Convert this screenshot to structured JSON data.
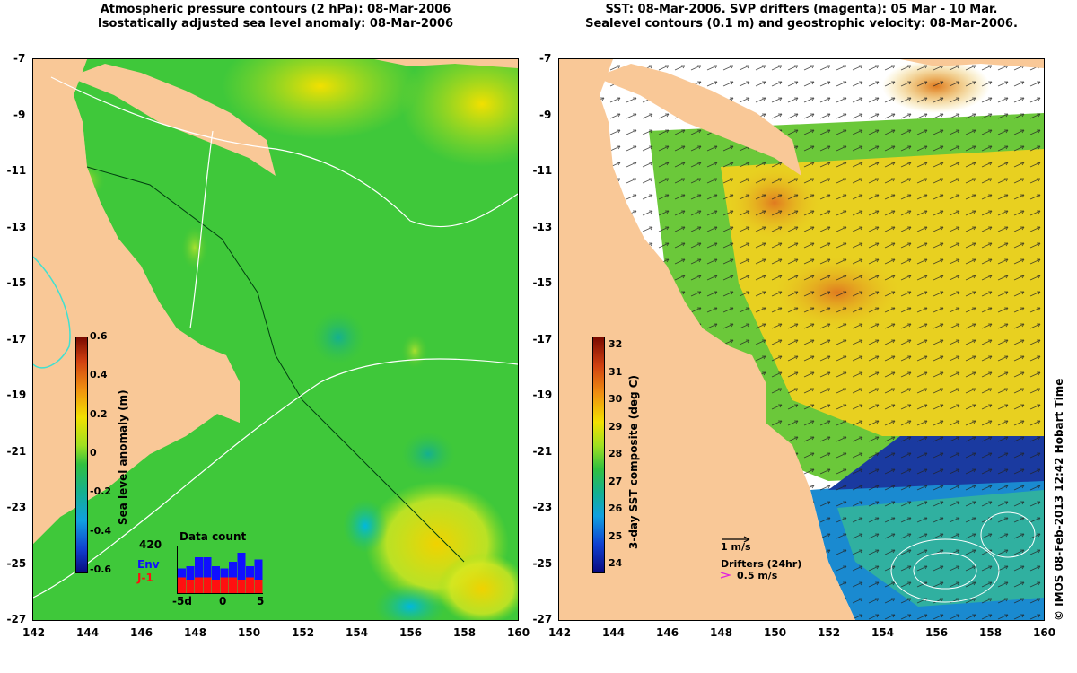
{
  "left_panel": {
    "title_line1": "Atmospheric pressure contours (2 hPa): 08-Mar-2006",
    "title_line2": "Isostatically adjusted sea level anomaly: 08-Mar-2006",
    "colorbar": {
      "title": "Sea level anomaly (m)",
      "labels": [
        "0.6",
        "0.4",
        "0.2",
        "0",
        "-0.2",
        "-0.4",
        "-0.6"
      ]
    },
    "data_count": {
      "title": "Data count",
      "max_label": "420",
      "series_env": "Env",
      "series_j1": "J-1",
      "x_labels": [
        "-5d",
        "0",
        "5"
      ],
      "env_color": "#1010ff",
      "j1_color": "#ff1010"
    }
  },
  "right_panel": {
    "title_line1": "SST: 08-Mar-2006. SVP drifters (magenta): 05 Mar - 10 Mar.",
    "title_line2": "Sealevel contours (0.1 m) and geostrophic velocity: 08-Mar-2006.",
    "colorbar": {
      "title": "3-day SST composite (deg C)",
      "labels": [
        "32",
        "31",
        "30",
        "29",
        "28",
        "27",
        "26",
        "25",
        "24"
      ]
    },
    "velocity_legend": "1 m/s",
    "drifter_legend_title": "Drifters (24hr)",
    "drifter_legend_value": "0.5 m/s"
  },
  "axes": {
    "lat_labels": [
      "-7",
      "-9",
      "-11",
      "-13",
      "-15",
      "-17",
      "-19",
      "-21",
      "-23",
      "-25",
      "-27"
    ],
    "lon_labels": [
      "142",
      "144",
      "146",
      "148",
      "150",
      "152",
      "154",
      "156",
      "158",
      "160"
    ]
  },
  "credit": "© IMOS 08-Feb-2013 12:42 Hobart Time",
  "colors": {
    "land": "#f9c897",
    "sea_green": "#3fc83a",
    "sst_white": "#ffffff"
  }
}
